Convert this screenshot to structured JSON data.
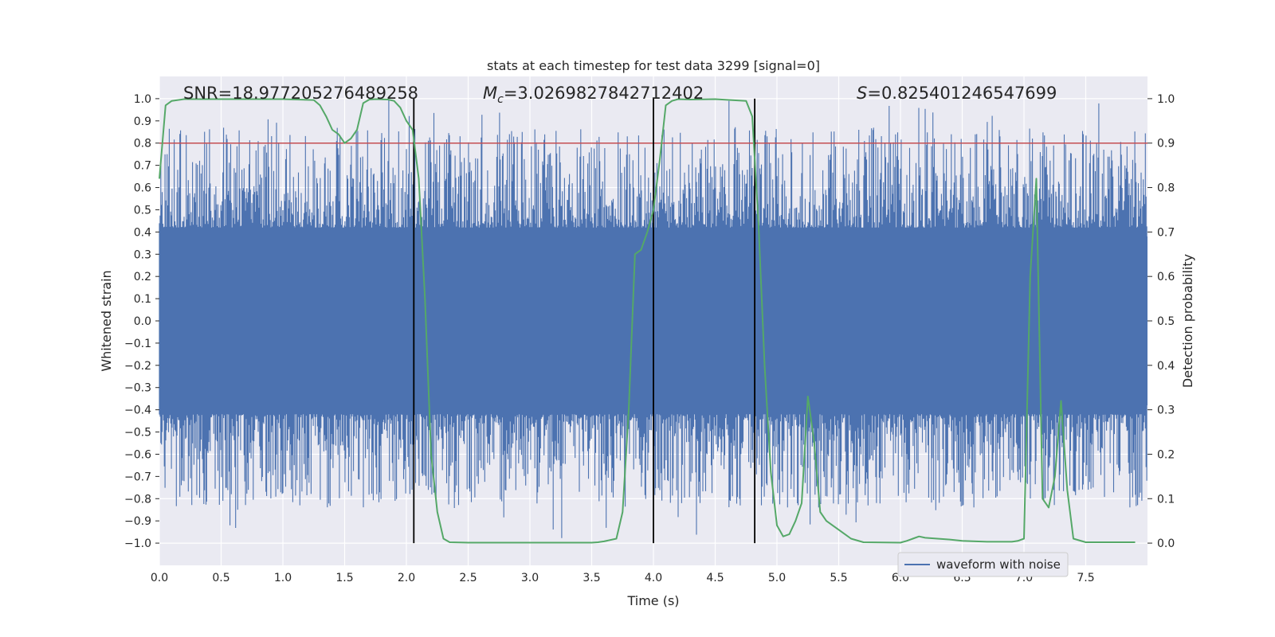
{
  "chart_data": {
    "type": "line",
    "title": "stats at each timestep for test data 3299 [signal=0]",
    "xlabel": "Time (s)",
    "ylabel_left": "Whitened strain",
    "ylabel_right": "Detection probability",
    "xlim": [
      0.0,
      8.0
    ],
    "ylim_left": [
      -1.1,
      1.1
    ],
    "ylim_right": [
      -0.05,
      1.05
    ],
    "xticks": [
      "0.0",
      "0.5",
      "1.0",
      "1.5",
      "2.0",
      "2.5",
      "3.0",
      "3.5",
      "4.0",
      "4.5",
      "5.0",
      "5.5",
      "6.0",
      "6.5",
      "7.0",
      "7.5"
    ],
    "xtick_values": [
      0.0,
      0.5,
      1.0,
      1.5,
      2.0,
      2.5,
      3.0,
      3.5,
      4.0,
      4.5,
      5.0,
      5.5,
      6.0,
      6.5,
      7.0,
      7.5
    ],
    "yticks_left": [
      "1.0",
      "0.9",
      "0.8",
      "0.7",
      "0.6",
      "0.5",
      "0.4",
      "0.3",
      "0.2",
      "0.1",
      "0.0",
      "−0.1",
      "−0.2",
      "−0.3",
      "−0.4",
      "−0.5",
      "−0.6",
      "−0.7",
      "−0.8",
      "−0.9",
      "−1.0"
    ],
    "ytick_left_values": [
      1.0,
      0.9,
      0.8,
      0.7,
      0.6,
      0.5,
      0.4,
      0.3,
      0.2,
      0.1,
      0.0,
      -0.1,
      -0.2,
      -0.3,
      -0.4,
      -0.5,
      -0.6,
      -0.7,
      -0.8,
      -0.9,
      -1.0
    ],
    "yticks_right": [
      "1.0",
      "0.9",
      "0.8",
      "0.7",
      "0.6",
      "0.5",
      "0.4",
      "0.3",
      "0.2",
      "0.1",
      "0.0"
    ],
    "ytick_right_values": [
      1.0,
      0.9,
      0.8,
      0.7,
      0.6,
      0.5,
      0.4,
      0.3,
      0.2,
      0.1,
      0.0
    ],
    "annotations": [
      {
        "label": "SNR",
        "value": "=18.977205276489258",
        "x": 0.2
      },
      {
        "label": "Mc",
        "value": "=3.0269827842712402",
        "x": 2.6
      },
      {
        "label": "S",
        "value": "=0.825401246547699",
        "x": 5.6
      }
    ],
    "legend": {
      "entries": [
        "waveform with noise"
      ],
      "position": "lower-right"
    },
    "threshold": {
      "value": 0.9,
      "axis": "right",
      "color": "#c44e52"
    },
    "vertical_lines": [
      2.06,
      4.0,
      4.82
    ],
    "series": [
      {
        "name": "waveform with noise",
        "axis": "left",
        "color": "#4c72b0",
        "kind": "noise-band",
        "core_amplitude": 0.4,
        "max_positive": 1.0,
        "max_negative": -0.98,
        "tmax": 8.0
      },
      {
        "name": "detection probability",
        "axis": "right",
        "color": "#55a868",
        "x": [
          0.0,
          0.05,
          0.1,
          0.2,
          0.5,
          1.0,
          1.25,
          1.3,
          1.35,
          1.4,
          1.45,
          1.5,
          1.55,
          1.6,
          1.65,
          1.7,
          1.75,
          1.85,
          1.9,
          1.95,
          2.0,
          2.05,
          2.1,
          2.15,
          2.2,
          2.25,
          2.3,
          2.35,
          2.5,
          3.0,
          3.3,
          3.5,
          3.55,
          3.6,
          3.7,
          3.75,
          3.8,
          3.85,
          3.9,
          3.95,
          4.0,
          4.05,
          4.1,
          4.15,
          4.2,
          4.3,
          4.5,
          4.75,
          4.8,
          4.85,
          4.9,
          4.95,
          5.0,
          5.05,
          5.1,
          5.15,
          5.2,
          5.25,
          5.3,
          5.35,
          5.4,
          5.45,
          5.5,
          5.55,
          5.6,
          5.7,
          6.0,
          6.05,
          6.1,
          6.15,
          6.2,
          6.3,
          6.4,
          6.5,
          6.7,
          6.9,
          6.95,
          7.0,
          7.05,
          7.1,
          7.15,
          7.2,
          7.25,
          7.3,
          7.35,
          7.4,
          7.5,
          7.6,
          7.7,
          7.9
        ],
        "y": [
          0.82,
          0.985,
          0.995,
          0.999,
          0.999,
          0.999,
          0.997,
          0.985,
          0.96,
          0.93,
          0.92,
          0.9,
          0.91,
          0.93,
          0.99,
          0.998,
          0.999,
          0.998,
          0.995,
          0.98,
          0.95,
          0.93,
          0.82,
          0.55,
          0.2,
          0.07,
          0.01,
          0.002,
          0.001,
          0.001,
          0.001,
          0.001,
          0.002,
          0.004,
          0.01,
          0.07,
          0.3,
          0.65,
          0.66,
          0.7,
          0.75,
          0.86,
          0.985,
          0.995,
          0.999,
          0.998,
          0.999,
          0.995,
          0.96,
          0.72,
          0.4,
          0.16,
          0.04,
          0.015,
          0.02,
          0.05,
          0.09,
          0.33,
          0.23,
          0.07,
          0.05,
          0.04,
          0.03,
          0.02,
          0.01,
          0.002,
          0.001,
          0.005,
          0.01,
          0.015,
          0.012,
          0.01,
          0.008,
          0.005,
          0.003,
          0.003,
          0.005,
          0.01,
          0.6,
          0.82,
          0.1,
          0.08,
          0.15,
          0.32,
          0.12,
          0.01,
          0.002,
          0.002,
          0.002,
          0.002
        ]
      }
    ]
  }
}
